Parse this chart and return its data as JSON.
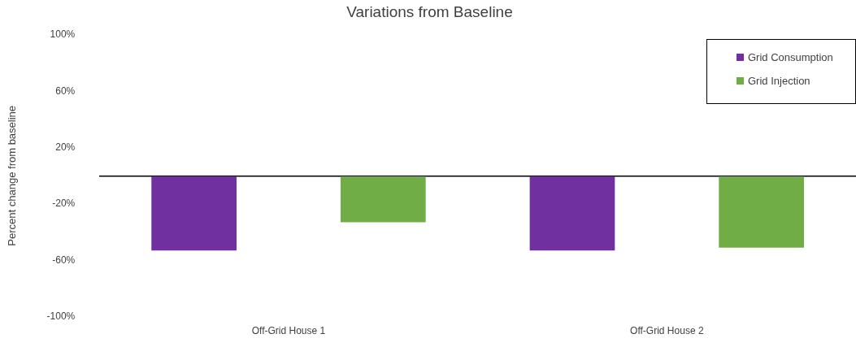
{
  "chart_data": {
    "type": "bar",
    "title": "Variations from Baseline",
    "ylabel": "Percent change from baseline",
    "categories": [
      "Off-Grid House 1",
      "Off-Grid House 2"
    ],
    "series": [
      {
        "name": "Grid Consumption",
        "color": "#7030a0",
        "values": [
          -53,
          -53
        ]
      },
      {
        "name": "Grid Injection",
        "color": "#70ad47",
        "values": [
          -33,
          -51
        ]
      }
    ],
    "ylim": [
      -100,
      100
    ],
    "yticks": [
      {
        "value": -100,
        "label": "-100%"
      },
      {
        "value": -60,
        "label": "-60%"
      },
      {
        "value": -20,
        "label": "-20%"
      },
      {
        "value": 20,
        "label": "20%"
      },
      {
        "value": 60,
        "label": "60%"
      },
      {
        "value": 100,
        "label": "100%"
      }
    ],
    "grid": false,
    "legend": "top right"
  }
}
